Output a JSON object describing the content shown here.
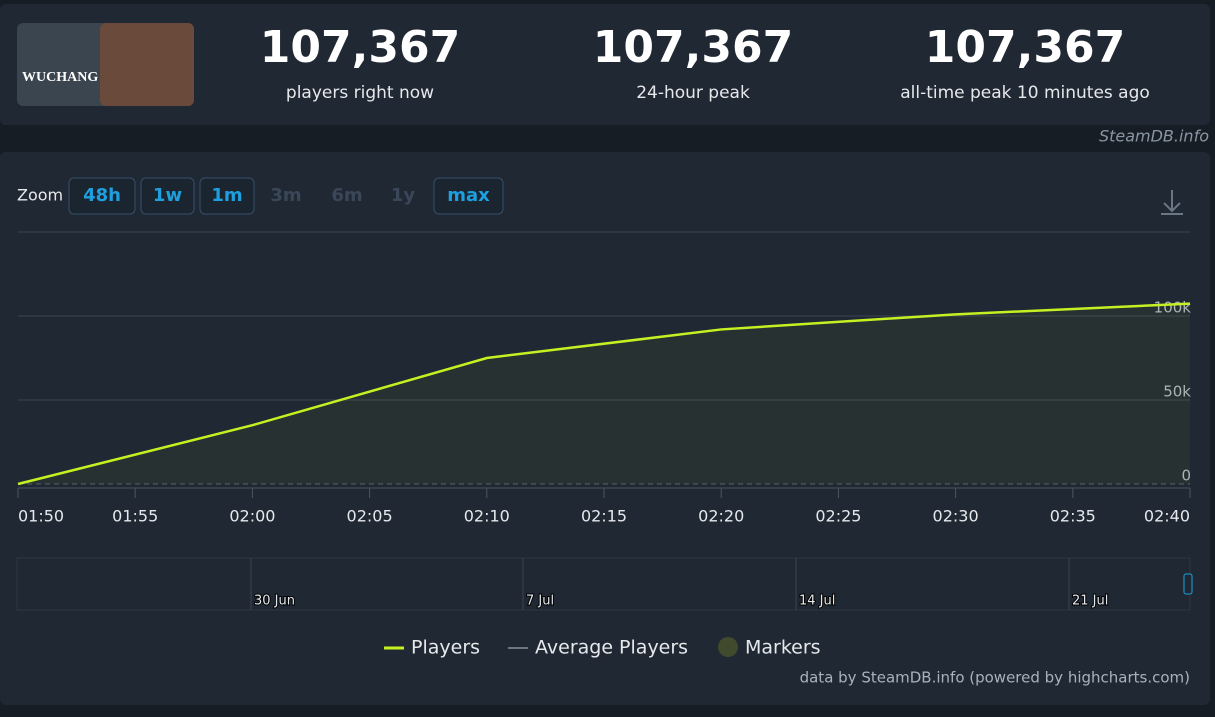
{
  "header": {
    "logo_text": "WUCHANG",
    "stats": [
      {
        "value": "107,367",
        "label": "players right now"
      },
      {
        "value": "107,367",
        "label": "24-hour peak"
      },
      {
        "value": "107,367",
        "label": "all-time peak 10 minutes ago"
      }
    ],
    "source": "SteamDB.info"
  },
  "zoom": {
    "label": "Zoom",
    "buttons": [
      "48h",
      "1w",
      "1m",
      "3m",
      "6m",
      "1y",
      "max"
    ],
    "enabled": [
      true,
      true,
      true,
      false,
      false,
      false,
      true
    ]
  },
  "chart_data": {
    "type": "line",
    "x": [
      110,
      120,
      130,
      140,
      150,
      160
    ],
    "xlim": [
      110,
      160
    ],
    "xticks": [
      {
        "value": 110,
        "label": "01:50"
      },
      {
        "value": 115,
        "label": "01:55"
      },
      {
        "value": 120,
        "label": "02:00"
      },
      {
        "value": 125,
        "label": "02:05"
      },
      {
        "value": 130,
        "label": "02:10"
      },
      {
        "value": 135,
        "label": "02:15"
      },
      {
        "value": 140,
        "label": "02:20"
      },
      {
        "value": 145,
        "label": "02:25"
      },
      {
        "value": 150,
        "label": "02:30"
      },
      {
        "value": 155,
        "label": "02:35"
      },
      {
        "value": 160,
        "label": "02:40"
      }
    ],
    "ylim": [
      0,
      150000
    ],
    "yticks": [
      0,
      {
        "value": 50000,
        "label": "50k"
      },
      {
        "value": 100000,
        "label": "100k"
      }
    ],
    "grid": true,
    "series": [
      {
        "name": "Players",
        "color": "#c4f121",
        "values": [
          0,
          35000,
          75000,
          92000,
          101000,
          107367
        ]
      }
    ],
    "other_legend_items": [
      {
        "name": "Average Players",
        "color": "#6b7684"
      },
      {
        "name": "Markers",
        "color": "#414a2c"
      }
    ],
    "navigator_labels": [
      "30 Jun",
      "7 Jul",
      "14 Jul",
      "21 Jul"
    ],
    "credit": "data by SteamDB.info (powered by highcharts.com)"
  }
}
